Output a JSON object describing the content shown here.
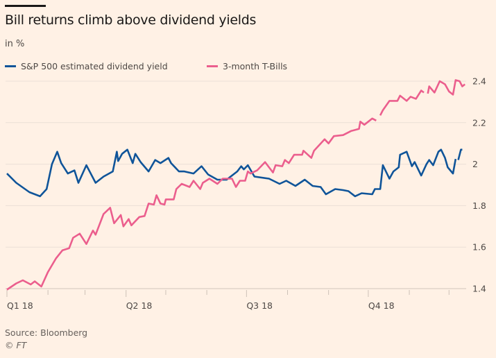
{
  "title": "Bill returns climb above dividend yields",
  "subtitle": "in %",
  "source": "Source: Bloomberg",
  "copyright": "© FT",
  "colors": {
    "background": "#fff1e5",
    "dividend": "#0f5499",
    "tbills": "#eb5e8d"
  },
  "chart_data": {
    "type": "line",
    "title": "Bill returns climb above dividend yields",
    "subtitle": "in %",
    "xlabel": "",
    "ylabel": "",
    "ylim": [
      1.4,
      2.4
    ],
    "yticks": [
      1.4,
      1.6,
      1.8,
      2.0,
      2.2,
      2.4
    ],
    "ytick_labels": [
      "1.4",
      "1.6",
      "1.8",
      "2",
      "2.2",
      "2.4"
    ],
    "y_axis_side": "right",
    "xlim": [
      "2018-01-01",
      "2018-12-13"
    ],
    "xticks": [
      {
        "date": "2018-01-01",
        "label": "Q1 18"
      },
      {
        "date": "2018-04-01",
        "label": "Q2 18"
      },
      {
        "date": "2018-07-01",
        "label": "Q3 18"
      },
      {
        "date": "2018-10-01",
        "label": "Q4 18"
      }
    ],
    "minor_xticks": [
      "2018-02-01",
      "2018-03-01",
      "2018-05-01",
      "2018-06-01",
      "2018-08-01",
      "2018-09-01",
      "2018-11-01",
      "2018-12-01"
    ],
    "grid": "horizontal",
    "legend": "top",
    "series": [
      {
        "name": "S&P 500 estimated dividend yield",
        "color": "#0f5499",
        "points": [
          [
            "2018-01-01",
            1.955
          ],
          [
            "2018-01-08",
            1.91
          ],
          [
            "2018-01-18",
            1.865
          ],
          [
            "2018-01-26",
            1.845
          ],
          [
            "2018-01-31",
            1.88
          ],
          [
            "2018-02-04",
            2.0
          ],
          [
            "2018-02-08",
            2.06
          ],
          [
            "2018-02-11",
            2.005
          ],
          [
            "2018-02-16",
            1.955
          ],
          [
            "2018-02-21",
            1.97
          ],
          [
            "2018-02-24",
            1.91
          ],
          [
            "2018-03-02",
            1.995
          ],
          [
            "2018-03-09",
            1.91
          ],
          [
            "2018-03-15",
            1.94
          ],
          [
            "2018-03-22",
            1.965
          ],
          [
            "2018-03-25",
            2.06
          ],
          [
            "2018-03-26",
            2.015
          ],
          [
            "2018-03-29",
            2.05
          ],
          [
            "2018-04-02",
            2.07
          ],
          [
            "2018-04-06",
            2.005
          ],
          [
            "2018-04-08",
            2.05
          ],
          [
            "2018-04-12",
            2.01
          ],
          [
            "2018-04-18",
            1.965
          ],
          [
            "2018-04-23",
            2.02
          ],
          [
            "2018-04-27",
            2.005
          ],
          [
            "2018-05-03",
            2.03
          ],
          [
            "2018-05-05",
            2.005
          ],
          [
            "2018-05-11",
            1.965
          ],
          [
            "2018-05-15",
            1.965
          ],
          [
            "2018-05-22",
            1.955
          ],
          [
            "2018-05-28",
            1.99
          ],
          [
            "2018-06-02",
            1.95
          ],
          [
            "2018-06-09",
            1.925
          ],
          [
            "2018-06-16",
            1.925
          ],
          [
            "2018-06-24",
            1.965
          ],
          [
            "2018-06-27",
            1.99
          ],
          [
            "2018-06-29",
            1.975
          ],
          [
            "2018-07-02",
            1.995
          ],
          [
            "2018-07-07",
            1.94
          ],
          [
            "2018-07-18",
            1.93
          ],
          [
            "2018-07-26",
            1.905
          ],
          [
            "2018-07-31",
            1.92
          ],
          [
            "2018-08-07",
            1.895
          ],
          [
            "2018-08-14",
            1.925
          ],
          [
            "2018-08-20",
            1.895
          ],
          [
            "2018-08-26",
            1.89
          ],
          [
            "2018-08-30",
            1.855
          ],
          [
            "2018-09-06",
            1.88
          ],
          [
            "2018-09-12",
            1.875
          ],
          [
            "2018-09-16",
            1.87
          ],
          [
            "2018-09-21",
            1.845
          ],
          [
            "2018-09-26",
            1.86
          ],
          [
            "2018-10-04",
            1.855
          ],
          [
            "2018-10-06",
            1.88
          ],
          [
            "2018-10-10",
            1.88
          ],
          [
            "2018-10-12",
            1.995
          ],
          [
            "2018-10-17",
            1.93
          ],
          [
            "2018-10-20",
            1.965
          ],
          [
            "2018-10-24",
            1.985
          ],
          [
            "2018-10-25",
            2.045
          ],
          [
            "2018-10-30",
            2.06
          ],
          [
            "2018-11-03",
            1.99
          ],
          [
            "2018-11-05",
            2.01
          ],
          [
            "2018-11-10",
            1.945
          ],
          [
            "2018-11-14",
            2.0
          ],
          [
            "2018-11-16",
            2.02
          ],
          [
            "2018-11-19",
            1.995
          ],
          [
            "2018-11-23",
            2.06
          ],
          [
            "2018-11-25",
            2.07
          ],
          [
            "2018-11-28",
            2.03
          ],
          [
            "2018-11-30",
            1.985
          ],
          [
            "2018-12-04",
            1.955
          ],
          [
            "2018-12-06",
            2.025
          ],
          [
            "2018-12-07",
            null
          ],
          [
            "2018-12-08",
            2.02
          ],
          [
            "2018-12-10",
            2.07
          ],
          [
            "2018-12-11",
            2.07
          ]
        ]
      },
      {
        "name": "3-month T-Bills",
        "color": "#eb5e8d",
        "points": [
          [
            "2018-01-01",
            1.395
          ],
          [
            "2018-01-08",
            1.425
          ],
          [
            "2018-01-13",
            1.44
          ],
          [
            "2018-01-19",
            1.42
          ],
          [
            "2018-01-22",
            1.435
          ],
          [
            "2018-01-27",
            1.41
          ],
          [
            "2018-02-01",
            1.48
          ],
          [
            "2018-02-07",
            1.545
          ],
          [
            "2018-02-12",
            1.585
          ],
          [
            "2018-02-17",
            1.595
          ],
          [
            "2018-02-20",
            1.645
          ],
          [
            "2018-02-25",
            1.665
          ],
          [
            "2018-03-02",
            1.615
          ],
          [
            "2018-03-07",
            1.68
          ],
          [
            "2018-03-09",
            1.66
          ],
          [
            "2018-03-15",
            1.76
          ],
          [
            "2018-03-20",
            1.79
          ],
          [
            "2018-03-23",
            1.715
          ],
          [
            "2018-03-28",
            1.755
          ],
          [
            "2018-03-30",
            1.7
          ],
          [
            "2018-04-03",
            1.735
          ],
          [
            "2018-04-05",
            1.705
          ],
          [
            "2018-04-11",
            1.745
          ],
          [
            "2018-04-15",
            1.75
          ],
          [
            "2018-04-18",
            1.81
          ],
          [
            "2018-04-22",
            1.805
          ],
          [
            "2018-04-24",
            1.85
          ],
          [
            "2018-04-27",
            1.81
          ],
          [
            "2018-04-30",
            1.805
          ],
          [
            "2018-05-01",
            1.83
          ],
          [
            "2018-05-07",
            1.83
          ],
          [
            "2018-05-09",
            1.88
          ],
          [
            "2018-05-13",
            1.905
          ],
          [
            "2018-05-19",
            1.89
          ],
          [
            "2018-05-22",
            1.92
          ],
          [
            "2018-05-27",
            1.88
          ],
          [
            "2018-05-29",
            1.91
          ],
          [
            "2018-06-03",
            1.93
          ],
          [
            "2018-06-09",
            1.905
          ],
          [
            "2018-06-13",
            1.93
          ],
          [
            "2018-06-20",
            1.93
          ],
          [
            "2018-06-23",
            1.89
          ],
          [
            "2018-06-26",
            1.92
          ],
          [
            "2018-06-30",
            1.92
          ],
          [
            "2018-07-02",
            1.965
          ],
          [
            "2018-07-04",
            1.955
          ],
          [
            "2018-07-09",
            1.97
          ],
          [
            "2018-07-15",
            2.01
          ],
          [
            "2018-07-21",
            1.96
          ],
          [
            "2018-07-23",
            1.995
          ],
          [
            "2018-07-28",
            1.99
          ],
          [
            "2018-07-30",
            2.02
          ],
          [
            "2018-08-02",
            2.005
          ],
          [
            "2018-08-06",
            2.045
          ],
          [
            "2018-08-12",
            2.045
          ],
          [
            "2018-08-13",
            2.065
          ],
          [
            "2018-08-19",
            2.03
          ],
          [
            "2018-08-21",
            2.065
          ],
          [
            "2018-08-29",
            2.12
          ],
          [
            "2018-09-01",
            2.1
          ],
          [
            "2018-09-05",
            2.135
          ],
          [
            "2018-09-12",
            2.14
          ],
          [
            "2018-09-18",
            2.16
          ],
          [
            "2018-09-24",
            2.17
          ],
          [
            "2018-09-25",
            2.205
          ],
          [
            "2018-09-28",
            2.19
          ],
          [
            "2018-10-04",
            2.22
          ],
          [
            "2018-10-07",
            2.21
          ],
          [
            "2018-10-08",
            null
          ],
          [
            "2018-10-10",
            2.235
          ],
          [
            "2018-10-12",
            2.26
          ],
          [
            "2018-10-17",
            2.305
          ],
          [
            "2018-10-23",
            2.305
          ],
          [
            "2018-10-25",
            2.33
          ],
          [
            "2018-10-30",
            2.305
          ],
          [
            "2018-11-02",
            2.325
          ],
          [
            "2018-11-06",
            2.315
          ],
          [
            "2018-11-10",
            2.355
          ],
          [
            "2018-11-12",
            2.345
          ],
          [
            "2018-11-13",
            null
          ],
          [
            "2018-11-15",
            2.34
          ],
          [
            "2018-11-16",
            2.375
          ],
          [
            "2018-11-20",
            2.345
          ],
          [
            "2018-11-24",
            2.4
          ],
          [
            "2018-11-28",
            2.385
          ],
          [
            "2018-12-01",
            2.35
          ],
          [
            "2018-12-04",
            2.335
          ],
          [
            "2018-12-06",
            2.405
          ],
          [
            "2018-12-09",
            2.4
          ],
          [
            "2018-12-11",
            2.375
          ],
          [
            "2018-12-13",
            2.385
          ]
        ]
      }
    ]
  }
}
